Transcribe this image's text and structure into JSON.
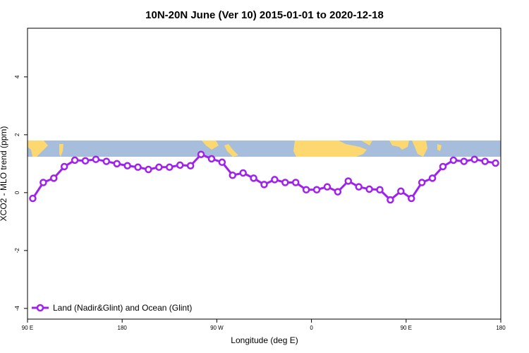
{
  "chart_data": {
    "type": "line",
    "title": "10N-20N June (Ver 10)   2015-01-01 to 2020-12-18",
    "x_label": "Longitude (deg E)",
    "y_label": "XCO2 - MLO trend (ppm)",
    "x": [
      95,
      105,
      115,
      125,
      135,
      145,
      155,
      165,
      175,
      185,
      195,
      205,
      215,
      225,
      235,
      245,
      255,
      265,
      275,
      285,
      295,
      305,
      315,
      325,
      335,
      345,
      355,
      365,
      375,
      385,
      395,
      405,
      415,
      425,
      435,
      445,
      455,
      465,
      475,
      485,
      495,
      505,
      515,
      525,
      535
    ],
    "series": [
      {
        "name": "Land (Nadir&Glint) and Ocean (Glint)",
        "color": "#a020f0",
        "values": [
          -0.2,
          0.35,
          0.5,
          0.9,
          1.12,
          1.1,
          1.15,
          1.08,
          1.0,
          0.93,
          0.88,
          0.8,
          0.88,
          0.88,
          0.95,
          0.93,
          1.32,
          1.17,
          1.05,
          0.6,
          0.68,
          0.5,
          0.28,
          0.45,
          0.35,
          0.35,
          0.1,
          0.1,
          0.2,
          0.03,
          0.4,
          0.2,
          0.12,
          0.1,
          -0.25,
          0.05,
          -0.2,
          0.35,
          0.5,
          0.9,
          1.12,
          1.08,
          1.15,
          1.08,
          1.02
        ]
      }
    ],
    "xlim": [
      90,
      540
    ],
    "xticks": [
      {
        "value": 90,
        "label": "90 E"
      },
      180,
      {
        "value": 270,
        "label": "90 W"
      },
      {
        "value": 360,
        "label": "0"
      },
      {
        "value": 450,
        "label": "90 E"
      },
      {
        "value": 540,
        "label": "180"
      }
    ],
    "ylim": [
      -4.37,
      5.68
    ],
    "yticks": [
      -4,
      -2,
      0,
      2,
      4
    ],
    "legend": "bottom-left"
  }
}
